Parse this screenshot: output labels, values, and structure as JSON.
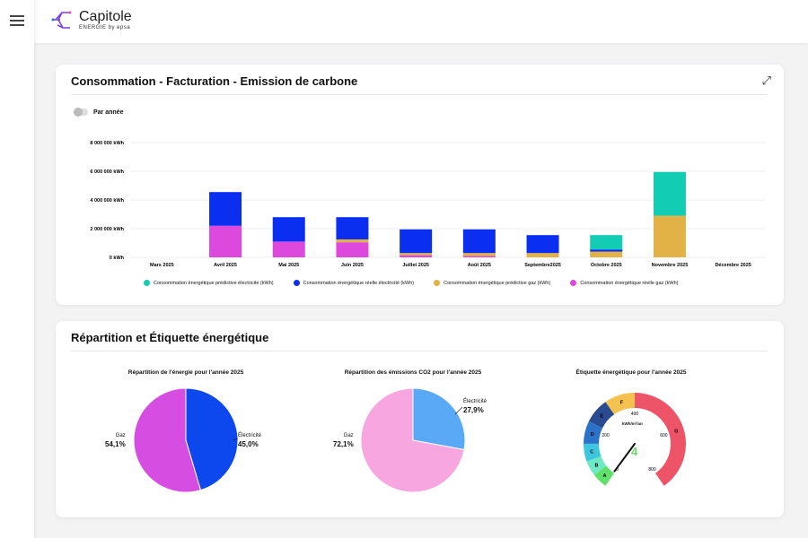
{
  "app": {
    "logo_title": "Capitole",
    "logo_sub": "ENERGIE by epsa"
  },
  "card1": {
    "title": "Consommation - Facturation - Emission de carbone",
    "toggle_label": "Par année"
  },
  "chart_data": {
    "type": "bar",
    "stacked": true,
    "categories": [
      "Mars 2025",
      "Avril 2025",
      "Mai 2025",
      "Juin 2025",
      "Juillet 2025",
      "Août 2025",
      "Septembre2025",
      "Octobre 2025",
      "Novembre 2025",
      "Décembre 2025"
    ],
    "yticks": [
      "0 kWh",
      "2 000 000 kWh",
      "4 000 000 kWh",
      "6 000 000 kWh",
      "8 000 000 kWh"
    ],
    "ylim": [
      0,
      8000000
    ],
    "series": [
      {
        "name": "Consommation énergétique réelle gaz (kWh)",
        "color": "#dd48dd",
        "values": [
          0,
          2200000,
          1100000,
          1050000,
          150000,
          100000,
          0,
          0,
          0,
          0
        ]
      },
      {
        "name": "Consommation énergétique prédictive gaz (kWh)",
        "color": "#e2b246",
        "values": [
          0,
          0,
          0,
          200000,
          150000,
          200000,
          300000,
          400000,
          2900000,
          0
        ]
      },
      {
        "name": "Consommation énergétique réelle électricité (kWh)",
        "color": "#0b2ff0",
        "values": [
          0,
          2350000,
          1700000,
          1550000,
          1650000,
          1650000,
          1250000,
          150000,
          0,
          0
        ]
      },
      {
        "name": "Consommation énergétique prédictive électricité (kWh)",
        "color": "#12ccb3",
        "values": [
          0,
          0,
          0,
          0,
          0,
          0,
          0,
          1000000,
          3050000,
          0
        ]
      }
    ],
    "legend_order": [
      3,
      2,
      1,
      0
    ]
  },
  "card2": {
    "title": "Répartition et Étiquette énergétique"
  },
  "pie1": {
    "title": "Répartition  de l'énergie pour l'année 2025",
    "slices": [
      {
        "label": "Électricité",
        "pct": "45,0%",
        "value": 45.0,
        "color": "#0c48ee"
      },
      {
        "label": "Gaz",
        "pct": "54,1%",
        "value": 54.1,
        "color": "#d64de2"
      }
    ]
  },
  "pie2": {
    "title": "Répartition  des émissions CO2 pour l'année 2025",
    "slices": [
      {
        "label": "Électricité",
        "pct": "27,9%",
        "value": 27.9,
        "color": "#5aa9f6"
      },
      {
        "label": "Gaz",
        "pct": "72,1%",
        "value": 72.1,
        "color": "#f8a6df"
      }
    ]
  },
  "gauge": {
    "title": "Étiquette énergétique pour l'année 2025",
    "unit": "kWh/m²/an",
    "value": "4",
    "value_num": 4,
    "ticks": [
      "0",
      "200",
      "400",
      "600",
      "800"
    ],
    "classes": [
      {
        "l": "A",
        "c": "#5fe06a"
      },
      {
        "l": "B",
        "c": "#6fe8c6"
      },
      {
        "l": "C",
        "c": "#3cc7df"
      },
      {
        "l": "D",
        "c": "#2b73c9"
      },
      {
        "l": "E",
        "c": "#2a4a91"
      },
      {
        "l": "F",
        "c": "#f6c24f"
      },
      {
        "l": "G",
        "c": "#ee5468"
      }
    ]
  }
}
